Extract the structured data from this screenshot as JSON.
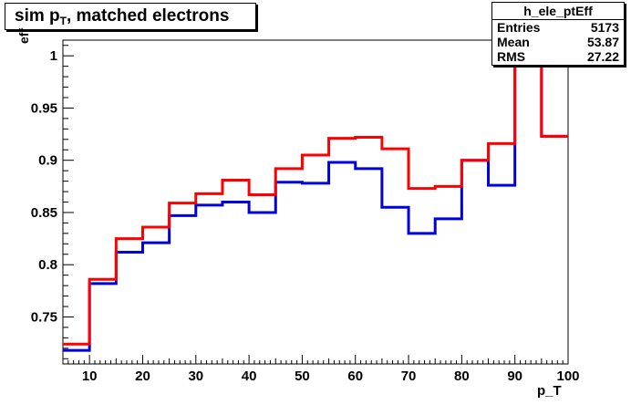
{
  "title": {
    "main": "sim p",
    "sub": "T",
    "rest": ", matched electrons"
  },
  "stats": {
    "name": "h_ele_ptEff",
    "rows": [
      {
        "label": "Entries",
        "value": "5173"
      },
      {
        "label": "Mean",
        "value": "53.87"
      },
      {
        "label": "RMS",
        "value": "27.22"
      }
    ]
  },
  "chart_data": {
    "type": "line",
    "drawstyle": "steps",
    "title": "sim p_T, matched electrons",
    "xlabel": "p_T",
    "ylabel": "eff",
    "xlim": [
      5,
      100
    ],
    "ylim": [
      0.705,
      1.015
    ],
    "x_ticks": [
      "10",
      "20",
      "30",
      "40",
      "50",
      "60",
      "70",
      "80",
      "90",
      "100"
    ],
    "y_ticks": [
      "0.75",
      "0.8",
      "0.85",
      "0.9",
      "0.95",
      "1"
    ],
    "x_tick_values": [
      10,
      20,
      30,
      40,
      50,
      60,
      70,
      80,
      90,
      100
    ],
    "y_tick_values": [
      0.75,
      0.8,
      0.85,
      0.9,
      0.95,
      1.0
    ],
    "bin_edges": [
      5,
      10,
      15,
      20,
      25,
      30,
      35,
      40,
      45,
      50,
      55,
      60,
      65,
      70,
      75,
      80,
      85,
      90,
      95,
      100
    ],
    "series": [
      {
        "color": "#0000dd",
        "values": [
          0.718,
          0.782,
          0.812,
          0.821,
          0.847,
          0.857,
          0.86,
          0.85,
          0.879,
          0.878,
          0.898,
          0.892,
          0.855,
          0.83,
          0.844,
          0.9,
          0.876,
          1.0,
          0.923
        ]
      },
      {
        "color": "#ff0000",
        "values": [
          0.724,
          0.786,
          0.825,
          0.836,
          0.859,
          0.868,
          0.881,
          0.867,
          0.892,
          0.905,
          0.921,
          0.922,
          0.911,
          0.873,
          0.875,
          0.9,
          0.916,
          1.0,
          0.923
        ]
      }
    ],
    "grid": false,
    "legend": "none"
  }
}
